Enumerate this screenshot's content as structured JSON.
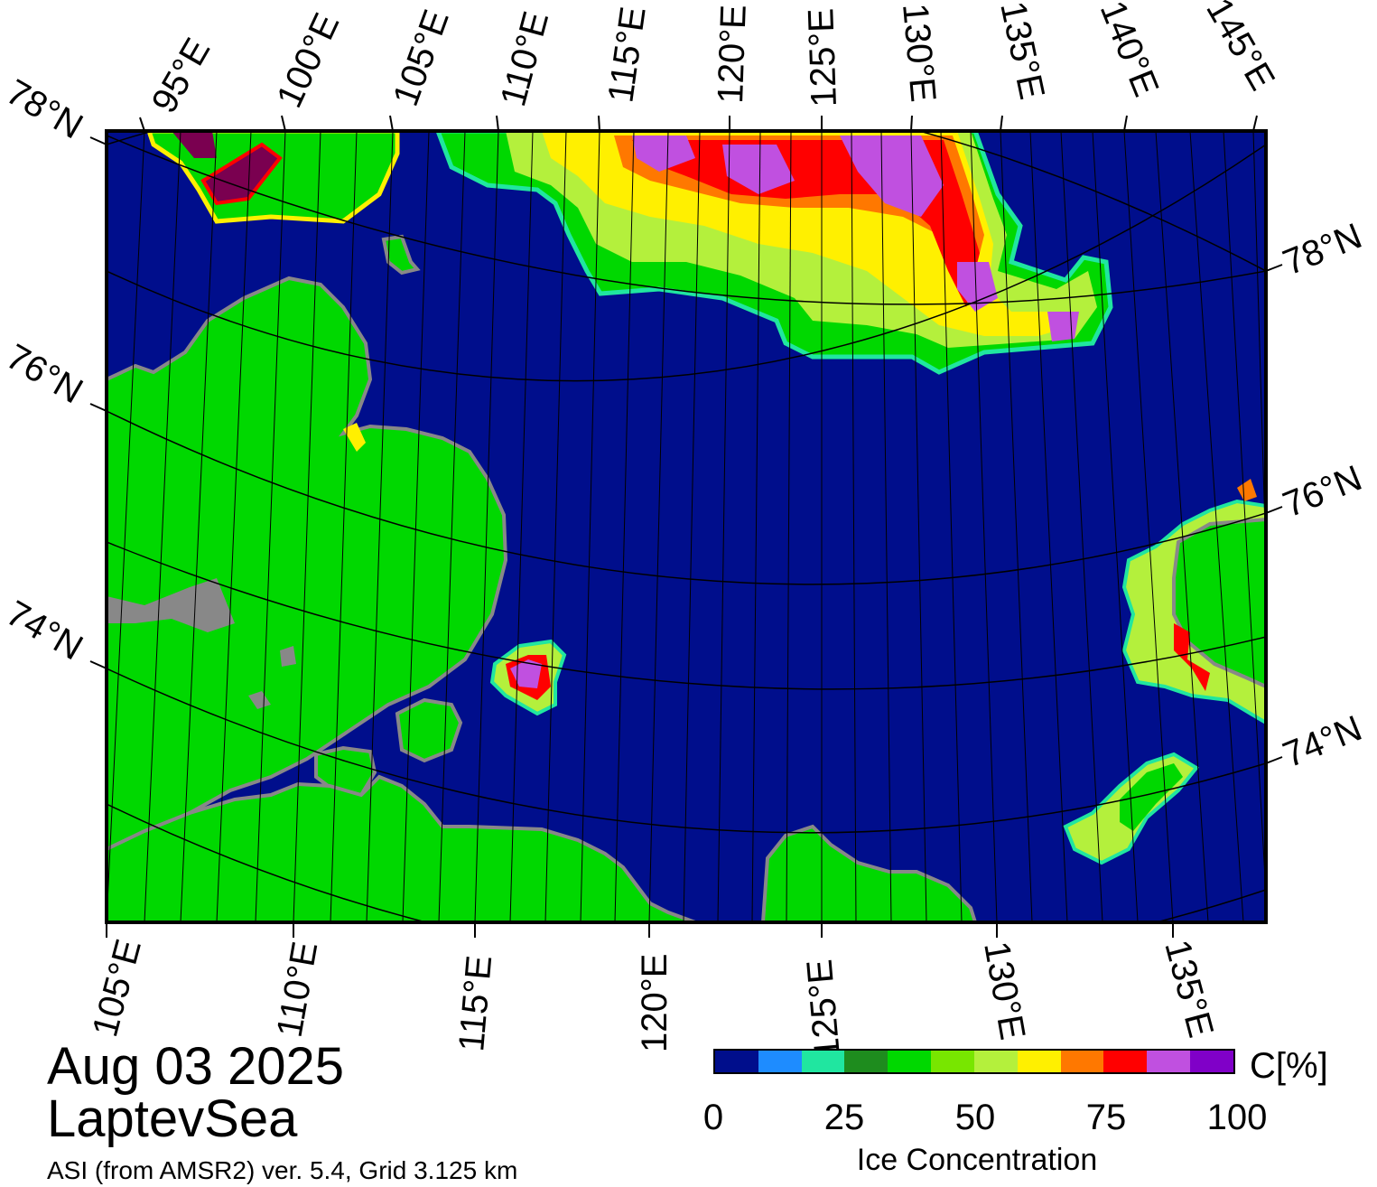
{
  "title": {
    "date": "Aug 03 2025",
    "region": "LaptevSea",
    "subtitle": "ASI (from AMSR2) ver. 5.4,  Grid 3.125 km"
  },
  "colors": {
    "ocean": "#000e8c",
    "land": "#00d800",
    "land_gray": "#888888",
    "frame": "#000000"
  },
  "axis_labels": {
    "top": [
      "95°E",
      "100°E",
      "105°E",
      "110°E",
      "115°E",
      "120°E",
      "125°E",
      "130°E",
      "135°E",
      "140°E",
      "145°E"
    ],
    "bottom": [
      "105°E",
      "110°E",
      "115°E",
      "120°E",
      "125°E",
      "130°E",
      "135°E"
    ],
    "left": [
      "78°N",
      "76°N",
      "74°N"
    ],
    "right": [
      "78°N",
      "76°N",
      "74°N"
    ]
  },
  "colorbar": {
    "unit": "C[%]",
    "label": "Ice Concentration",
    "ticks": [
      "0",
      "25",
      "50",
      "75",
      "100"
    ],
    "colors": [
      "#000e8c",
      "#1e8cff",
      "#20e6a0",
      "#1e8c1e",
      "#00d800",
      "#78e600",
      "#b4f03c",
      "#fff000",
      "#ff7800",
      "#ff0000",
      "#c050e0",
      "#8000c8"
    ]
  }
}
